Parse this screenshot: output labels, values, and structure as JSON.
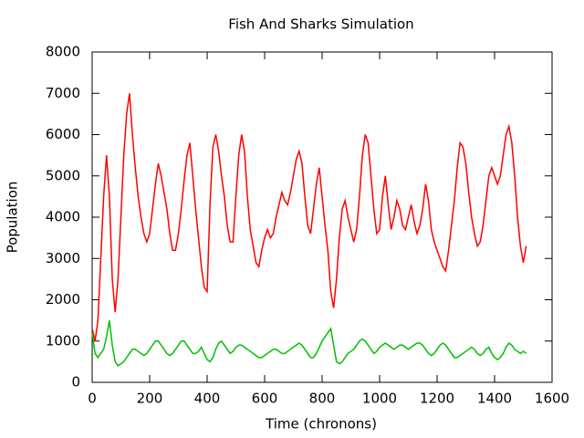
{
  "chart_data": {
    "type": "line",
    "title": "Fish And Sharks Simulation",
    "x_label": "Time (chronons)",
    "y_label": "Population",
    "xlim": [
      0,
      1600
    ],
    "xticks": [
      0,
      200,
      400,
      600,
      800,
      1000,
      1200,
      1400,
      1600
    ],
    "ylim": [
      0,
      8000
    ],
    "yticks": [
      0,
      1000,
      2000,
      3000,
      4000,
      5000,
      6000,
      7000,
      8000
    ],
    "grid": false,
    "x": [
      0,
      10,
      20,
      30,
      40,
      50,
      60,
      70,
      80,
      90,
      100,
      110,
      120,
      130,
      140,
      150,
      160,
      170,
      180,
      190,
      200,
      210,
      220,
      230,
      240,
      250,
      260,
      270,
      280,
      290,
      300,
      310,
      320,
      330,
      340,
      350,
      360,
      370,
      380,
      390,
      400,
      410,
      420,
      430,
      440,
      450,
      460,
      470,
      480,
      490,
      500,
      510,
      520,
      530,
      540,
      550,
      560,
      570,
      580,
      590,
      600,
      610,
      620,
      630,
      640,
      650,
      660,
      670,
      680,
      690,
      700,
      710,
      720,
      730,
      740,
      750,
      760,
      770,
      780,
      790,
      800,
      810,
      820,
      830,
      840,
      850,
      860,
      870,
      880,
      890,
      900,
      910,
      920,
      930,
      940,
      950,
      960,
      970,
      980,
      990,
      1000,
      1010,
      1020,
      1030,
      1040,
      1050,
      1060,
      1070,
      1080,
      1090,
      1100,
      1110,
      1120,
      1130,
      1140,
      1150,
      1160,
      1170,
      1180,
      1190,
      1200,
      1210,
      1220,
      1230,
      1240,
      1250,
      1260,
      1270,
      1280,
      1290,
      1300,
      1310,
      1320,
      1330,
      1340,
      1350,
      1360,
      1370,
      1380,
      1390,
      1400,
      1410,
      1420,
      1430,
      1440,
      1450,
      1460,
      1470,
      1480,
      1490,
      1500,
      1510
    ],
    "series": [
      {
        "color": "#ff0000",
        "values": [
          1300,
          1000,
          1500,
          3000,
          4500,
          5500,
          4500,
          2500,
          1700,
          2500,
          4000,
          5500,
          6500,
          7000,
          6000,
          5200,
          4500,
          4000,
          3600,
          3400,
          3600,
          4200,
          4800,
          5300,
          5000,
          4600,
          4200,
          3600,
          3200,
          3200,
          3600,
          4200,
          4900,
          5500,
          5800,
          5000,
          4200,
          3500,
          2800,
          2300,
          2200,
          4300,
          5700,
          6000,
          5600,
          5000,
          4500,
          3800,
          3400,
          3400,
          4500,
          5500,
          6000,
          5600,
          4500,
          3700,
          3300,
          2900,
          2800,
          3200,
          3500,
          3700,
          3500,
          3600,
          4000,
          4300,
          4600,
          4400,
          4300,
          4600,
          5000,
          5400,
          5600,
          5300,
          4500,
          3800,
          3600,
          4200,
          4800,
          5200,
          4500,
          3800,
          3200,
          2200,
          1800,
          2500,
          3500,
          4200,
          4400,
          4000,
          3700,
          3400,
          3700,
          4500,
          5500,
          6000,
          5800,
          5000,
          4200,
          3600,
          3700,
          4500,
          5000,
          4300,
          3700,
          4000,
          4400,
          4200,
          3800,
          3700,
          4000,
          4300,
          3900,
          3600,
          3800,
          4200,
          4800,
          4400,
          3700,
          3400,
          3200,
          3000,
          2800,
          2700,
          3200,
          3800,
          4400,
          5200,
          5800,
          5700,
          5300,
          4600,
          4000,
          3600,
          3300,
          3400,
          3800,
          4400,
          5000,
          5200,
          5000,
          4800,
          5000,
          5500,
          6000,
          6200,
          5800,
          5000,
          4000,
          3300,
          2900,
          3300
        ]
      },
      {
        "color": "#00c000",
        "values": [
          1200,
          700,
          600,
          700,
          800,
          1100,
          1500,
          900,
          500,
          400,
          450,
          500,
          600,
          700,
          800,
          800,
          750,
          700,
          650,
          700,
          800,
          900,
          1000,
          1000,
          900,
          800,
          700,
          650,
          700,
          800,
          900,
          1000,
          1000,
          900,
          800,
          700,
          700,
          750,
          850,
          700,
          550,
          500,
          600,
          800,
          950,
          1000,
          900,
          800,
          700,
          750,
          850,
          900,
          900,
          850,
          800,
          750,
          700,
          650,
          600,
          600,
          650,
          700,
          750,
          800,
          800,
          750,
          700,
          700,
          750,
          800,
          850,
          900,
          950,
          900,
          800,
          700,
          600,
          600,
          700,
          850,
          1000,
          1100,
          1200,
          1300,
          900,
          500,
          450,
          500,
          600,
          700,
          750,
          800,
          900,
          1000,
          1050,
          1000,
          900,
          800,
          700,
          750,
          850,
          900,
          950,
          900,
          850,
          800,
          850,
          900,
          900,
          850,
          800,
          850,
          900,
          950,
          950,
          900,
          800,
          700,
          650,
          700,
          800,
          900,
          950,
          900,
          800,
          700,
          600,
          600,
          650,
          700,
          750,
          800,
          850,
          800,
          700,
          650,
          700,
          800,
          850,
          700,
          600,
          550,
          600,
          700,
          850,
          950,
          900,
          800,
          750,
          700,
          750,
          700
        ]
      }
    ]
  }
}
